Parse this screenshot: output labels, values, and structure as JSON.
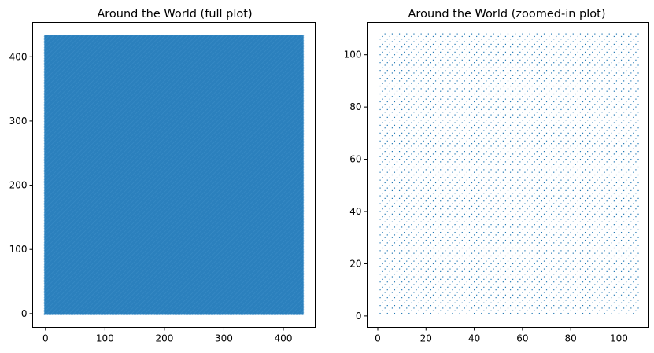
{
  "chart_data": [
    {
      "type": "scatter",
      "title": "Around the World (full plot)",
      "xlabel": "",
      "ylabel": "",
      "xlim": [
        -21.6,
        453.6
      ],
      "ylim": [
        -21.6,
        453.6
      ],
      "xticks": [
        0,
        100,
        200,
        300,
        400
      ],
      "yticks": [
        0,
        100,
        200,
        300,
        400
      ],
      "grid": false,
      "marker_color": "#1f77b4",
      "points": {
        "description": "dense lattice of points with every diagonal i - j divisible by 3",
        "x_range": [
          0,
          432
        ],
        "y_range": [
          0,
          432
        ],
        "step": 1,
        "diagonal_modulus": 3
      }
    },
    {
      "type": "scatter",
      "title": "Around the World (zoomed-in plot)",
      "xlabel": "",
      "ylabel": "",
      "xlim": [
        -4.4,
        112.4
      ],
      "ylim": [
        -4.4,
        112.4
      ],
      "xticks": [
        0,
        20,
        40,
        60,
        80,
        100
      ],
      "yticks": [
        0,
        20,
        40,
        60,
        80,
        100
      ],
      "grid": false,
      "marker_color": "#1f77b4",
      "points": {
        "description": "lattice of points with every diagonal i - j divisible by 3",
        "x_range": [
          1,
          108
        ],
        "y_range": [
          1,
          108
        ],
        "step": 1,
        "diagonal_modulus": 3
      }
    }
  ]
}
